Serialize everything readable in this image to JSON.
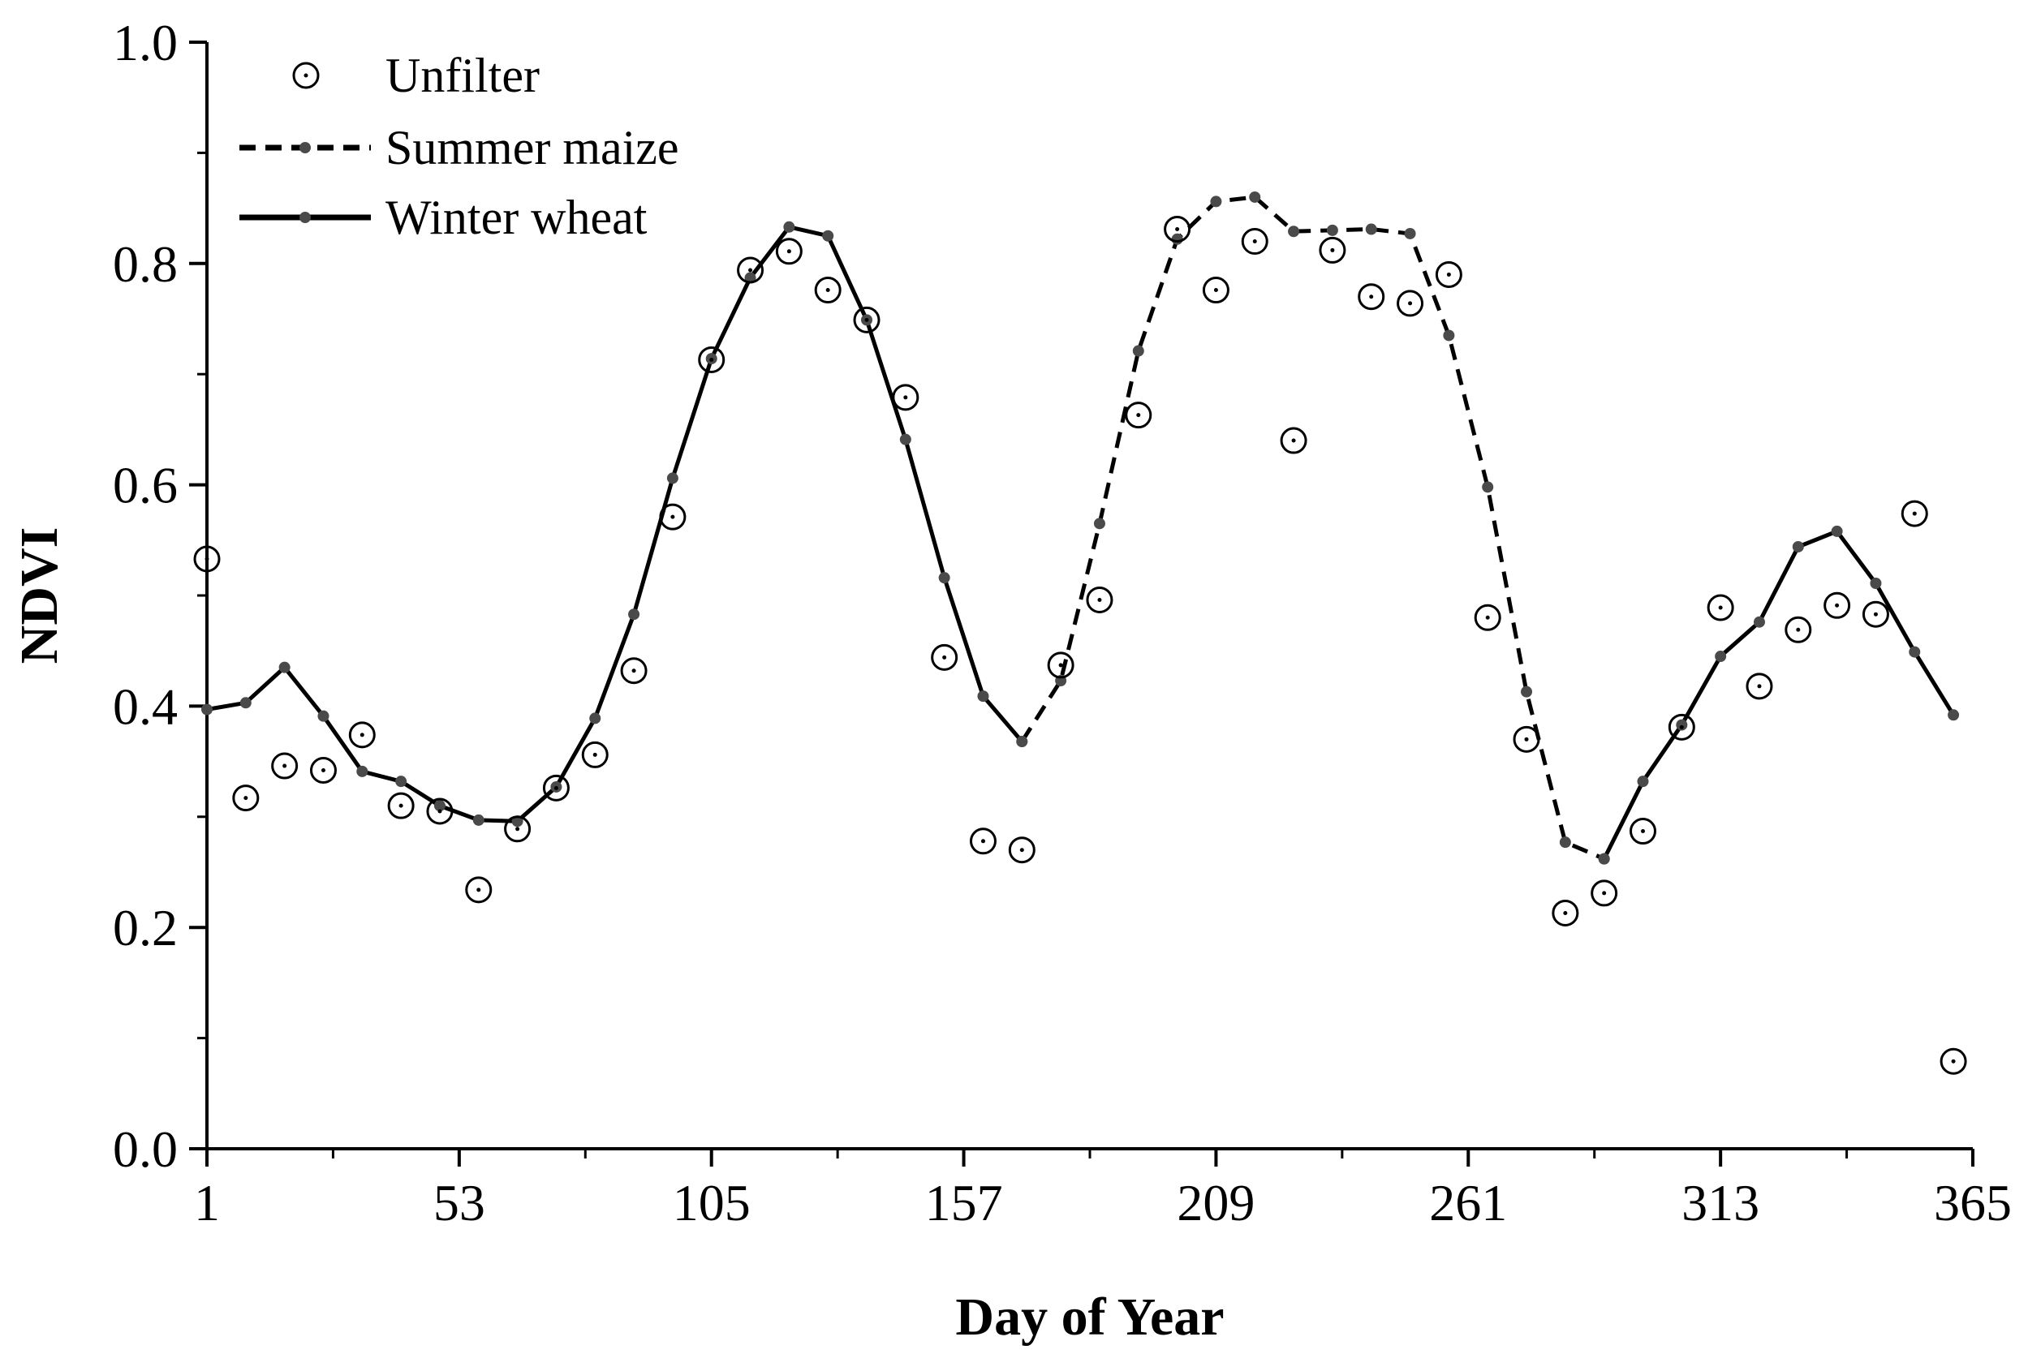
{
  "chart_data": {
    "type": "line",
    "title": "",
    "xlabel": "Day of Year",
    "ylabel": "NDVI",
    "xlim": [
      1,
      365
    ],
    "ylim": [
      0.0,
      1.0
    ],
    "xticks": [
      1,
      53,
      105,
      157,
      209,
      261,
      313,
      365
    ],
    "xtick_labels": [
      "1",
      "53",
      "105",
      "157",
      "209",
      "261",
      "313",
      "365"
    ],
    "yticks": [
      0.0,
      0.2,
      0.4,
      0.6,
      0.8,
      1.0
    ],
    "ytick_labels": [
      "0.0",
      "0.2",
      "0.4",
      "0.6",
      "0.8",
      "1.0"
    ],
    "grid": false,
    "legend_position": "top-left",
    "series": [
      {
        "name": "Unfilter",
        "style": "hollow-circle-markers",
        "color": "#000000",
        "x": [
          1,
          9,
          17,
          25,
          33,
          41,
          49,
          57,
          65,
          73,
          81,
          89,
          97,
          105,
          113,
          121,
          129,
          137,
          145,
          153,
          161,
          169,
          177,
          185,
          193,
          201,
          209,
          217,
          225,
          233,
          241,
          249,
          257,
          265,
          273,
          281,
          289,
          297,
          305,
          313,
          321,
          329,
          337,
          345,
          353,
          361
        ],
        "y": [
          0.533,
          0.317,
          0.346,
          0.342,
          0.374,
          0.31,
          0.305,
          0.234,
          0.289,
          0.326,
          0.356,
          0.432,
          0.571,
          0.713,
          0.794,
          0.811,
          0.776,
          0.749,
          0.679,
          0.444,
          0.278,
          0.27,
          0.437,
          0.496,
          0.663,
          0.831,
          0.776,
          0.82,
          0.64,
          0.812,
          0.77,
          0.764,
          0.79,
          0.48,
          0.37,
          0.213,
          0.231,
          0.287,
          0.381,
          0.489,
          0.418,
          0.469,
          0.491,
          0.483,
          0.574,
          0.079
        ]
      },
      {
        "name": "Summer maize",
        "style": "dashed-line-with-dots",
        "color": "#000000",
        "marker_color": "#4a4a4a",
        "x": [
          169,
          177,
          185,
          193,
          201,
          209,
          217,
          225,
          233,
          241,
          249,
          257,
          265,
          273,
          281,
          289
        ],
        "y": [
          0.368,
          0.423,
          0.565,
          0.721,
          0.822,
          0.856,
          0.86,
          0.829,
          0.83,
          0.831,
          0.827,
          0.735,
          0.598,
          0.413,
          0.277,
          0.262
        ]
      },
      {
        "name": "Winter wheat",
        "style": "solid-line-with-dots",
        "color": "#000000",
        "marker_color": "#4a4a4a",
        "segments": [
          {
            "x": [
              1,
              9,
              17,
              25,
              33,
              41,
              49,
              57,
              65,
              73,
              81,
              89,
              97,
              105,
              113,
              121,
              129,
              137,
              145,
              153,
              161,
              169
            ],
            "y": [
              0.397,
              0.403,
              0.435,
              0.391,
              0.341,
              0.332,
              0.31,
              0.297,
              0.296,
              0.327,
              0.389,
              0.483,
              0.606,
              0.714,
              0.787,
              0.833,
              0.825,
              0.749,
              0.641,
              0.516,
              0.409,
              0.368
            ]
          },
          {
            "x": [
              289,
              297,
              305,
              313,
              321,
              329,
              337,
              345,
              353,
              361
            ],
            "y": [
              0.262,
              0.332,
              0.383,
              0.445,
              0.476,
              0.544,
              0.558,
              0.511,
              0.449,
              0.392
            ]
          }
        ]
      }
    ]
  }
}
